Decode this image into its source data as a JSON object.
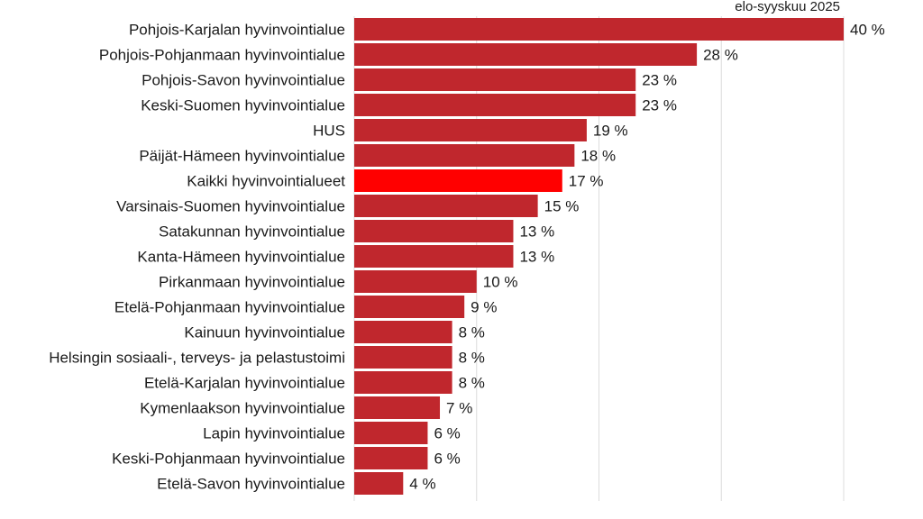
{
  "chart_data": {
    "type": "bar",
    "orientation": "horizontal",
    "series_label": "elo-syyskuu 2025",
    "unit_suffix": " %",
    "xlim": [
      0,
      40
    ],
    "grid": true,
    "colors": {
      "bar": "#c0272d",
      "highlight": "#ff0000",
      "grid": "#dcdcdc"
    },
    "highlight_category": "Kaikki hyvinvointialueet",
    "categories": [
      "Pohjois-Karjalan hyvinvointialue",
      "Pohjois-Pohjanmaan hyvinvointialue",
      "Pohjois-Savon hyvinvointialue",
      "Keski-Suomen hyvinvointialue",
      "HUS",
      "Päijät-Hämeen hyvinvointialue",
      "Kaikki hyvinvointialueet",
      "Varsinais-Suomen hyvinvointialue",
      "Satakunnan hyvinvointialue",
      "Kanta-Hämeen hyvinvointialue",
      "Pirkanmaan hyvinvointialue",
      "Etelä-Pohjanmaan hyvinvointialue",
      "Kainuun hyvinvointialue",
      "Helsingin sosiaali-, terveys- ja pelastustoimi",
      "Etelä-Karjalan hyvinvointialue",
      "Kymenlaakson hyvinvointialue",
      "Lapin hyvinvointialue",
      "Keski-Pohjanmaan hyvinvointialue",
      "Etelä-Savon hyvinvointialue"
    ],
    "values": [
      40,
      28,
      23,
      23,
      19,
      18,
      17,
      15,
      13,
      13,
      10,
      9,
      8,
      8,
      8,
      7,
      6,
      6,
      4
    ]
  }
}
